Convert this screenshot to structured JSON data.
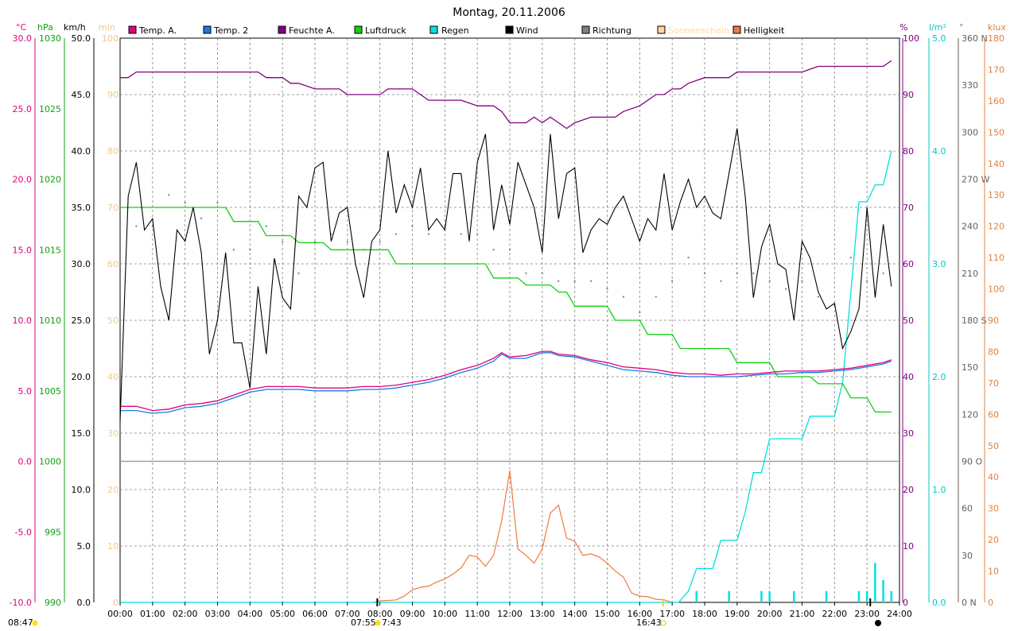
{
  "title": "Montag, 20.11.2006",
  "colors": {
    "temp_a": "#E0007F",
    "temp_2": "#1E78E0",
    "feuchte": "#800080",
    "luftdruck": "#10D010",
    "regen": "#00E0E0",
    "wind": "#000000",
    "richtung": "#808080",
    "sonnenschein": "#FFD9A0",
    "helligkeit": "#F07840",
    "min_axis": "#F0C890",
    "klux_axis": "#E08040"
  },
  "axis_units": {
    "temp": "°C",
    "pressure": "hPa",
    "wind": "km/h",
    "sun": "min",
    "humidity": "%",
    "rain": "l/m²",
    "direction": "°",
    "light": "klux"
  },
  "axis_ticks": {
    "temp": [
      "30.0",
      "25.0",
      "20.0",
      "15.0",
      "10.0",
      "5.0",
      "0.0",
      "-5.0",
      "-10.0"
    ],
    "pressure": [
      "1030",
      "1025",
      "1020",
      "1015",
      "1010",
      "1005",
      "1000",
      "995",
      "990"
    ],
    "wind": [
      "50.0",
      "45.0",
      "40.0",
      "35.0",
      "30.0",
      "25.0",
      "20.0",
      "15.0",
      "10.0",
      "5.0",
      "0.0"
    ],
    "sun": [
      "100",
      "90",
      "80",
      "70",
      "60",
      "50",
      "40",
      "30",
      "20",
      "10",
      "0"
    ],
    "humidity": [
      "100",
      "90",
      "80",
      "70",
      "60",
      "50",
      "40",
      "30",
      "20",
      "10",
      "0"
    ],
    "rain": [
      "5.0",
      "4.0",
      "3.0",
      "2.0",
      "1.0",
      "0.0"
    ],
    "direction": [
      "360 N",
      "330",
      "300",
      "270 W",
      "240",
      "210",
      "180 S",
      "150",
      "120",
      "90 O",
      "60",
      "30",
      "0 N"
    ],
    "light": [
      "180",
      "170",
      "160",
      "150",
      "140",
      "130",
      "120",
      "110",
      "100",
      "90",
      "80",
      "70",
      "60",
      "50",
      "40",
      "30",
      "20",
      "10",
      "0"
    ]
  },
  "time_labels": [
    "00:00",
    "01:00",
    "02:00",
    "03:00",
    "04:00",
    "05:00",
    "06:00",
    "07:00",
    "08:00",
    "09:00",
    "10:00",
    "11:00",
    "12:00",
    "13:00",
    "14:00",
    "15:00",
    "16:00",
    "17:00",
    "18:00",
    "19:00",
    "20:00",
    "21:00",
    "22:00",
    "23:00",
    "24:00"
  ],
  "sun_events": {
    "sunrise": "07:55",
    "sunrise_secondary": "7:43",
    "sunset": "16:43",
    "moonrise": "08:47"
  },
  "chart_data": {
    "type": "line",
    "title": "Montag, 20.11.2006",
    "x_unit": "hours",
    "xlim": [
      0,
      24
    ],
    "legend_position": "top",
    "grid": true,
    "series": [
      {
        "name": "Temp. A.",
        "axis": "°C",
        "ylim": [
          -10,
          30
        ],
        "x": [
          0,
          0.5,
          1,
          1.5,
          2,
          2.5,
          3,
          3.5,
          4,
          4.5,
          5,
          5.5,
          6,
          6.5,
          7,
          7.5,
          8,
          8.5,
          9,
          9.5,
          10,
          10.5,
          11,
          11.5,
          11.75,
          12,
          12.5,
          13,
          13.25,
          13.5,
          14,
          14.5,
          15,
          15.5,
          16,
          16.5,
          17,
          17.5,
          18,
          18.5,
          19,
          19.5,
          20,
          20.5,
          21,
          21.5,
          22,
          22.5,
          23,
          23.5,
          23.75
        ],
        "values": [
          3.9,
          3.9,
          3.6,
          3.7,
          4.0,
          4.1,
          4.3,
          4.7,
          5.1,
          5.3,
          5.3,
          5.3,
          5.2,
          5.2,
          5.2,
          5.3,
          5.3,
          5.4,
          5.6,
          5.8,
          6.1,
          6.5,
          6.8,
          7.3,
          7.7,
          7.4,
          7.5,
          7.8,
          7.8,
          7.6,
          7.5,
          7.2,
          7.0,
          6.7,
          6.6,
          6.5,
          6.3,
          6.2,
          6.2,
          6.1,
          6.2,
          6.2,
          6.3,
          6.4,
          6.4,
          6.4,
          6.5,
          6.6,
          6.8,
          7.0,
          7.2
        ]
      },
      {
        "name": "Temp. 2",
        "axis": "°C",
        "ylim": [
          -10,
          30
        ],
        "x": [
          0,
          0.5,
          1,
          1.5,
          2,
          2.5,
          3,
          3.5,
          4,
          4.5,
          5,
          5.5,
          6,
          6.5,
          7,
          7.5,
          8,
          8.5,
          9,
          9.5,
          10,
          10.5,
          11,
          11.5,
          11.75,
          12,
          12.5,
          13,
          13.25,
          13.5,
          14,
          14.5,
          15,
          15.5,
          16,
          16.5,
          17,
          17.5,
          18,
          18.5,
          19,
          19.5,
          20,
          20.5,
          21,
          21.5,
          22,
          22.5,
          23,
          23.5,
          23.75
        ],
        "values": [
          3.6,
          3.6,
          3.4,
          3.5,
          3.8,
          3.9,
          4.1,
          4.5,
          4.9,
          5.1,
          5.1,
          5.1,
          5.0,
          5.0,
          5.0,
          5.1,
          5.1,
          5.2,
          5.4,
          5.6,
          5.9,
          6.3,
          6.6,
          7.1,
          7.6,
          7.3,
          7.3,
          7.7,
          7.7,
          7.5,
          7.4,
          7.1,
          6.8,
          6.5,
          6.4,
          6.3,
          6.1,
          6.0,
          6.0,
          6.0,
          6.0,
          6.1,
          6.2,
          6.2,
          6.3,
          6.3,
          6.4,
          6.5,
          6.7,
          6.9,
          7.1
        ]
      },
      {
        "name": "Feuchte A.",
        "axis": "%",
        "ylim": [
          0,
          100
        ],
        "x": [
          0,
          0.25,
          0.5,
          4.25,
          4.5,
          5,
          5.25,
          5.5,
          6,
          6.5,
          6.75,
          7,
          7.5,
          8,
          8.25,
          9,
          9.5,
          10.5,
          11,
          11.5,
          11.75,
          12,
          12.5,
          12.75,
          13,
          13.25,
          13.5,
          13.75,
          14,
          14.5,
          15,
          15.25,
          15.5,
          16,
          16.5,
          16.75,
          17,
          17.25,
          17.5,
          18,
          18.75,
          19,
          19.5,
          20,
          21,
          21.5,
          22,
          22.5,
          23,
          23.25,
          23.5,
          23.75
        ],
        "values": [
          93,
          93,
          94,
          94,
          93,
          93,
          92,
          92,
          91,
          91,
          91,
          90,
          90,
          90,
          91,
          91,
          89,
          89,
          88,
          88,
          87,
          85,
          85,
          86,
          85,
          86,
          85,
          84,
          85,
          86,
          86,
          86,
          87,
          88,
          90,
          90,
          91,
          91,
          92,
          93,
          93,
          94,
          94,
          94,
          94,
          95,
          95,
          95,
          95,
          95,
          95,
          96
        ]
      },
      {
        "name": "Luftdruck",
        "axis": "hPa",
        "ylim": [
          990,
          1030
        ],
        "x": [
          0,
          3.25,
          3.5,
          4.25,
          4.5,
          5.25,
          5.5,
          6.25,
          6.5,
          8.25,
          8.5,
          11.25,
          11.5,
          12.25,
          12.5,
          13.25,
          13.5,
          13.75,
          14,
          15,
          15.25,
          16,
          16.25,
          17,
          17.25,
          18.75,
          19,
          20,
          20.25,
          21.25,
          21.5,
          22.25,
          22.5,
          23,
          23.25,
          23.75
        ],
        "values": [
          1018,
          1018,
          1017,
          1017,
          1016,
          1016,
          1015.5,
          1015.5,
          1015,
          1015,
          1014,
          1014,
          1013,
          1013,
          1012.5,
          1012.5,
          1012,
          1012,
          1011,
          1011,
          1010,
          1010,
          1009,
          1009,
          1008,
          1008,
          1007,
          1007,
          1006,
          1006,
          1005.5,
          1005.5,
          1004.5,
          1004.5,
          1003.5,
          1003.5
        ]
      },
      {
        "name": "Regen",
        "axis": "l/m²",
        "ylim": [
          0,
          5
        ],
        "cumulative_x": [
          0,
          17.2,
          17.5,
          17.75,
          18.25,
          18.5,
          19,
          19.25,
          19.5,
          19.75,
          20,
          20.25,
          20.5,
          21,
          21.25,
          21.5,
          22,
          22.25,
          22.5,
          22.75,
          23,
          23.25,
          23.5,
          23.75
        ],
        "cumulative_values": [
          0,
          0,
          0.1,
          0.3,
          0.3,
          0.55,
          0.55,
          0.8,
          1.15,
          1.15,
          1.45,
          1.45,
          1.45,
          1.45,
          1.65,
          1.65,
          1.65,
          1.95,
          2.75,
          3.55,
          3.55,
          3.7,
          3.7,
          4.0
        ],
        "bars_x": [
          17.75,
          18.75,
          19.75,
          20.0,
          20.75,
          21.75,
          22.75,
          23.0,
          23.25,
          23.5,
          23.75
        ],
        "bars_values": [
          0.1,
          0.1,
          0.1,
          0.1,
          0.1,
          0.1,
          0.1,
          0.1,
          0.35,
          0.2,
          0.1
        ]
      },
      {
        "name": "Wind",
        "axis": "km/h",
        "ylim": [
          0,
          50
        ],
        "x": [
          0,
          0.25,
          0.5,
          0.75,
          1,
          1.25,
          1.5,
          1.75,
          2,
          2.25,
          2.5,
          2.75,
          3,
          3.25,
          3.5,
          3.75,
          4,
          4.25,
          4.5,
          4.75,
          5,
          5.25,
          5.5,
          5.75,
          6,
          6.25,
          6.5,
          6.75,
          7,
          7.25,
          7.5,
          7.75,
          8,
          8.25,
          8.5,
          8.75,
          9,
          9.25,
          9.5,
          9.75,
          10,
          10.25,
          10.5,
          10.75,
          11,
          11.25,
          11.5,
          11.75,
          12,
          12.25,
          12.5,
          12.75,
          13,
          13.25,
          13.5,
          13.75,
          14,
          14.25,
          14.5,
          14.75,
          15,
          15.25,
          15.5,
          15.75,
          16,
          16.25,
          16.5,
          16.75,
          17,
          17.25,
          17.5,
          17.75,
          18,
          18.25,
          18.5,
          18.75,
          19,
          19.25,
          19.5,
          19.75,
          20,
          20.25,
          20.5,
          20.75,
          21,
          21.25,
          21.5,
          21.75,
          22,
          22.25,
          22.5,
          22.75,
          23,
          23.25,
          23.5,
          23.75
        ],
        "values": [
          16,
          36,
          39,
          33,
          34,
          28,
          25,
          33,
          32,
          35,
          31,
          22,
          25,
          31,
          23,
          23,
          19,
          28,
          22,
          30.5,
          27,
          26,
          36,
          35,
          38.5,
          39,
          32,
          34.5,
          35,
          30,
          27,
          32,
          33,
          40,
          34.5,
          37,
          35,
          38.5,
          33,
          34,
          33,
          38,
          38,
          32,
          39,
          41.5,
          33,
          37,
          33.5,
          39,
          37,
          35,
          31,
          41.5,
          34,
          38,
          38.5,
          31,
          33,
          34,
          33.5,
          35,
          36,
          34,
          32,
          34,
          33,
          38,
          33,
          35.5,
          37.5,
          35,
          36,
          34.5,
          34,
          38,
          42,
          36,
          27,
          31.5,
          33.5,
          30,
          29.5,
          25,
          32,
          30.5,
          27.5,
          26,
          26.5,
          22.5,
          24,
          26,
          35,
          27,
          33.5,
          28
        ]
      },
      {
        "name": "Richtung",
        "axis": "°",
        "ylim": [
          0,
          360
        ],
        "x": [
          0.5,
          1,
          1.5,
          2,
          2.5,
          3,
          3.5,
          4,
          4.5,
          5,
          5.5,
          6,
          6.5,
          7,
          7.5,
          8,
          8.5,
          9,
          9.5,
          10,
          10.5,
          11,
          11.5,
          12,
          12.5,
          13,
          13.5,
          14,
          14.5,
          15,
          15.5,
          16,
          16.5,
          17,
          17.5,
          18,
          18.5,
          19,
          19.5,
          20,
          20.5,
          21,
          21.5,
          22,
          22.5,
          23,
          23.5
        ],
        "values": [
          240,
          240,
          260,
          255,
          245,
          255,
          225,
          225,
          240,
          230,
          210,
          230,
          235,
          230,
          225,
          230,
          235,
          240,
          235,
          240,
          235,
          235,
          225,
          225,
          210,
          210,
          205,
          205,
          205,
          200,
          195,
          185,
          195,
          205,
          220,
          210,
          205,
          210,
          210,
          205,
          200,
          205,
          195,
          190,
          220,
          205,
          210
        ]
      },
      {
        "name": "Sonnenschein",
        "axis": "min",
        "ylim": [
          0,
          100
        ],
        "x": [],
        "values": []
      },
      {
        "name": "Helligkeit",
        "axis": "klux",
        "ylim": [
          0,
          180
        ],
        "x": [
          7.8,
          8,
          8.25,
          8.5,
          8.75,
          9,
          9.25,
          9.5,
          9.75,
          10,
          10.25,
          10.5,
          10.75,
          11,
          11.25,
          11.5,
          11.75,
          12,
          12.25,
          12.5,
          12.75,
          13,
          13.25,
          13.5,
          13.75,
          14,
          14.25,
          14.5,
          14.75,
          15,
          15.25,
          15.5,
          15.75,
          16,
          16.25,
          16.5,
          16.75,
          17
        ],
        "values": [
          0,
          0.5,
          0.6,
          0.8,
          2,
          4,
          4.8,
          5.2,
          6.5,
          7.5,
          9,
          11,
          15,
          14.5,
          11.5,
          15,
          26,
          42,
          17,
          15,
          12.5,
          17,
          28.5,
          31,
          20.5,
          19.5,
          15,
          15.5,
          14.5,
          12.5,
          10,
          8,
          3,
          2,
          1.8,
          1,
          0.8,
          0
        ]
      }
    ]
  }
}
